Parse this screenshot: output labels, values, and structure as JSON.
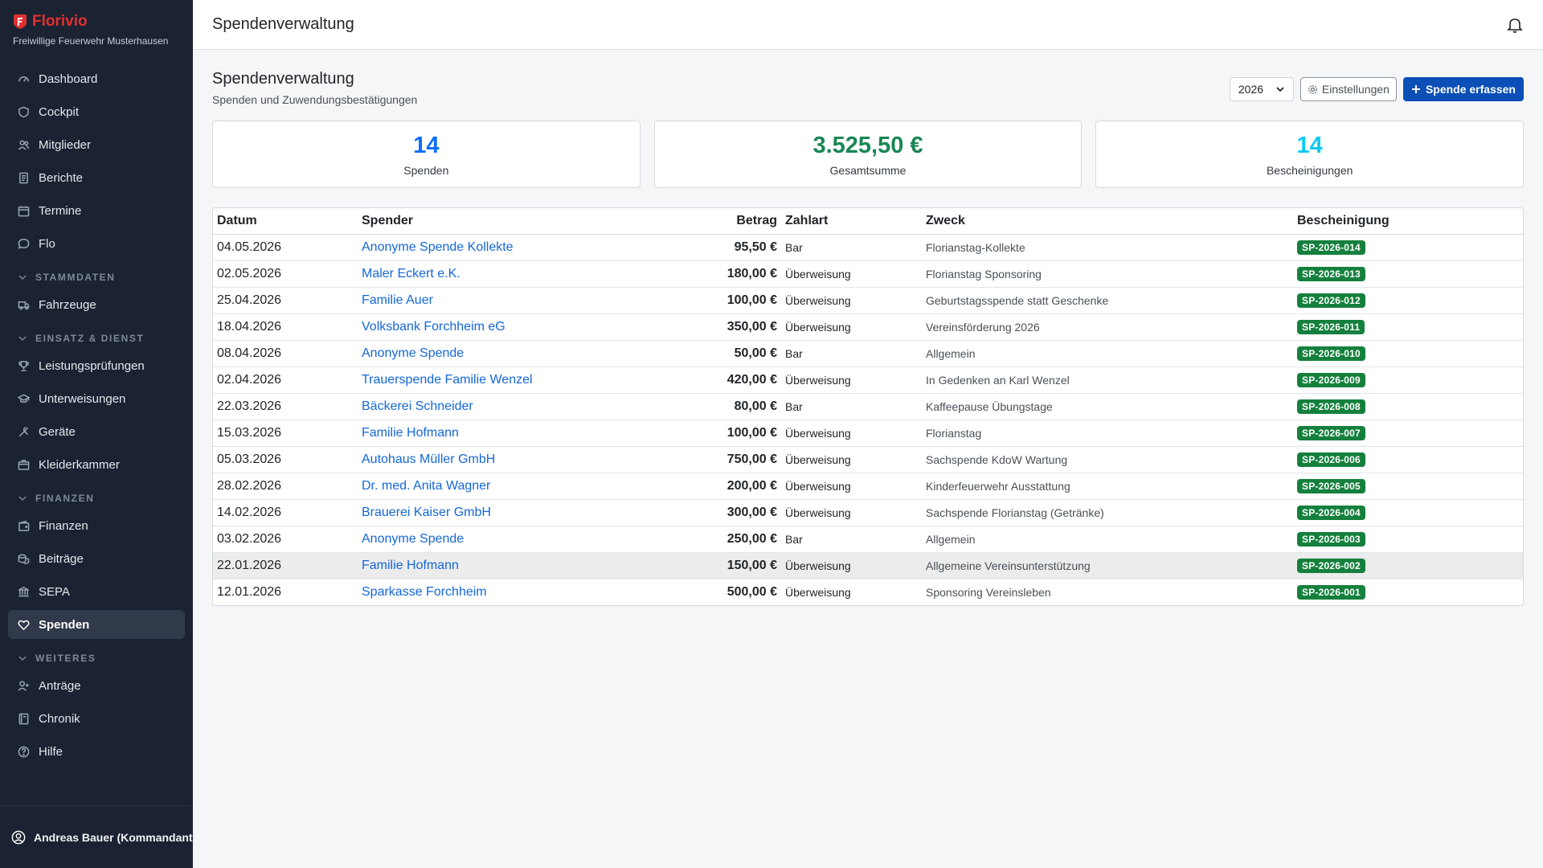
{
  "app": {
    "name": "Florivio",
    "org": "Freiwillige Feuerwehr Musterhausen"
  },
  "sidebar": {
    "top_items": [
      {
        "label": "Dashboard",
        "icon": "dashboard-icon"
      },
      {
        "label": "Cockpit",
        "icon": "shield-icon"
      },
      {
        "label": "Mitglieder",
        "icon": "users-icon"
      },
      {
        "label": "Berichte",
        "icon": "document-icon"
      },
      {
        "label": "Termine",
        "icon": "calendar-icon"
      },
      {
        "label": "Flo",
        "icon": "chat-icon"
      }
    ],
    "sections": [
      {
        "title": "STAMMDATEN",
        "items": [
          {
            "label": "Fahrzeuge",
            "icon": "truck-icon"
          }
        ]
      },
      {
        "title": "EINSATZ & DIENST",
        "items": [
          {
            "label": "Leistungsprüfungen",
            "icon": "trophy-icon"
          },
          {
            "label": "Unterweisungen",
            "icon": "graduation-icon"
          },
          {
            "label": "Geräte",
            "icon": "tools-icon"
          },
          {
            "label": "Kleiderkammer",
            "icon": "box-icon"
          }
        ]
      },
      {
        "title": "FINANZEN",
        "items": [
          {
            "label": "Finanzen",
            "icon": "wallet-icon"
          },
          {
            "label": "Beiträge",
            "icon": "coins-icon"
          },
          {
            "label": "SEPA",
            "icon": "bank-icon"
          },
          {
            "label": "Spenden",
            "icon": "heart-icon",
            "active": true
          }
        ]
      },
      {
        "title": "WEITERES",
        "items": [
          {
            "label": "Anträge",
            "icon": "user-plus-icon"
          },
          {
            "label": "Chronik",
            "icon": "book-icon"
          },
          {
            "label": "Hilfe",
            "icon": "help-icon"
          }
        ]
      }
    ],
    "user": "Andreas Bauer (Kommandant)"
  },
  "topbar": {
    "title": "Spendenverwaltung"
  },
  "page": {
    "title": "Spendenverwaltung",
    "subtitle": "Spenden und Zuwendungsbestätigungen",
    "year": "2026",
    "settings_label": "Einstellungen",
    "add_label": "Spende erfassen"
  },
  "stats": [
    {
      "value": "14",
      "label": "Spenden",
      "color": "#0d6efd"
    },
    {
      "value": "3.525,50 €",
      "label": "Gesamtsumme",
      "color": "#198754"
    },
    {
      "value": "14",
      "label": "Bescheinigungen",
      "color": "#0dcaf0"
    }
  ],
  "table": {
    "headers": [
      "Datum",
      "Spender",
      "Betrag",
      "Zahlart",
      "Zweck",
      "Bescheinigung"
    ],
    "rows": [
      {
        "date": "04.05.2026",
        "donor": "Anonyme Spende Kollekte",
        "amount": "95,50 €",
        "pay": "Bar",
        "purpose": "Florianstag-Kollekte",
        "cert": "SP-2026-014"
      },
      {
        "date": "02.05.2026",
        "donor": "Maler Eckert e.K.",
        "amount": "180,00 €",
        "pay": "Überweisung",
        "purpose": "Florianstag Sponsoring",
        "cert": "SP-2026-013"
      },
      {
        "date": "25.04.2026",
        "donor": "Familie Auer",
        "amount": "100,00 €",
        "pay": "Überweisung",
        "purpose": "Geburtstagsspende statt Geschenke",
        "cert": "SP-2026-012"
      },
      {
        "date": "18.04.2026",
        "donor": "Volksbank Forchheim eG",
        "amount": "350,00 €",
        "pay": "Überweisung",
        "purpose": "Vereinsförderung 2026",
        "cert": "SP-2026-011"
      },
      {
        "date": "08.04.2026",
        "donor": "Anonyme Spende",
        "amount": "50,00 €",
        "pay": "Bar",
        "purpose": "Allgemein",
        "cert": "SP-2026-010"
      },
      {
        "date": "02.04.2026",
        "donor": "Trauerspende Familie Wenzel",
        "amount": "420,00 €",
        "pay": "Überweisung",
        "purpose": "In Gedenken an Karl Wenzel",
        "cert": "SP-2026-009"
      },
      {
        "date": "22.03.2026",
        "donor": "Bäckerei Schneider",
        "amount": "80,00 €",
        "pay": "Bar",
        "purpose": "Kaffeepause Übungstage",
        "cert": "SP-2026-008"
      },
      {
        "date": "15.03.2026",
        "donor": "Familie Hofmann",
        "amount": "100,00 €",
        "pay": "Überweisung",
        "purpose": "Florianstag",
        "cert": "SP-2026-007"
      },
      {
        "date": "05.03.2026",
        "donor": "Autohaus Müller GmbH",
        "amount": "750,00 €",
        "pay": "Überweisung",
        "purpose": "Sachspende KdoW Wartung",
        "cert": "SP-2026-006"
      },
      {
        "date": "28.02.2026",
        "donor": "Dr. med. Anita Wagner",
        "amount": "200,00 €",
        "pay": "Überweisung",
        "purpose": "Kinderfeuerwehr Ausstattung",
        "cert": "SP-2026-005"
      },
      {
        "date": "14.02.2026",
        "donor": "Brauerei Kaiser GmbH",
        "amount": "300,00 €",
        "pay": "Überweisung",
        "purpose": "Sachspende Florianstag (Getränke)",
        "cert": "SP-2026-004"
      },
      {
        "date": "03.02.2026",
        "donor": "Anonyme Spende",
        "amount": "250,00 €",
        "pay": "Bar",
        "purpose": "Allgemein",
        "cert": "SP-2026-003"
      },
      {
        "date": "22.01.2026",
        "donor": "Familie Hofmann",
        "amount": "150,00 €",
        "pay": "Überweisung",
        "purpose": "Allgemeine Vereinsunterstützung",
        "cert": "SP-2026-002",
        "hovered": true
      },
      {
        "date": "12.01.2026",
        "donor": "Sparkasse Forchheim",
        "amount": "500,00 €",
        "pay": "Überweisung",
        "purpose": "Sponsoring Vereinsleben",
        "cert": "SP-2026-001"
      }
    ]
  }
}
